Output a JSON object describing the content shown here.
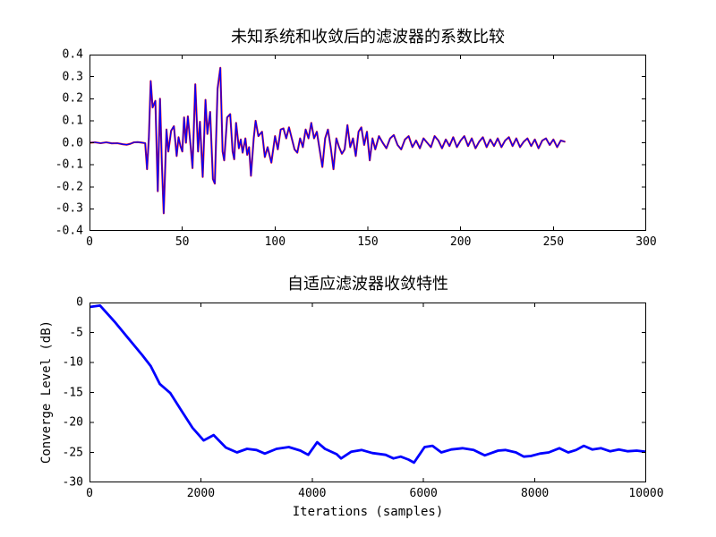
{
  "figure": {
    "background": "#ffffff",
    "frame_color": "#000000"
  },
  "chart_data": [
    {
      "id": "coefficient-comparison",
      "type": "line",
      "title": "未知系统和收敛后的滤波器的系数比较",
      "xlabel": "",
      "ylabel": "",
      "xlim": [
        0,
        300
      ],
      "ylim": [
        -0.4,
        0.4
      ],
      "grid": false,
      "legend": null,
      "xticks": {
        "values": [
          0,
          50,
          100,
          150,
          200,
          250,
          300
        ],
        "labels": [
          "0",
          "50",
          "100",
          "150",
          "200",
          "250",
          "300"
        ]
      },
      "yticks": {
        "values": [
          0.4,
          0.3,
          0.2,
          0.1,
          0.0,
          -0.1,
          -0.2,
          -0.3,
          -0.4
        ],
        "labels": [
          "0.4",
          "0.3",
          "0.2",
          "0.1",
          "0.0",
          "-0.1",
          "-0.2",
          "-0.3",
          "-0.4"
        ]
      },
      "series": [
        {
          "name": "unknown-system-coefficients",
          "color": "#ff0000",
          "width": 2.1,
          "points": "shared"
        },
        {
          "name": "converged-filter-coefficients",
          "color": "#0000ff",
          "width": 1.3,
          "points": "shared"
        }
      ],
      "shared_points": [
        [
          0,
          0
        ],
        [
          3,
          0.002
        ],
        [
          6,
          -0.002
        ],
        [
          9,
          0.002
        ],
        [
          12,
          -0.003
        ],
        [
          15,
          -0.002
        ],
        [
          18,
          -0.007
        ],
        [
          20,
          -0.009
        ],
        [
          22,
          -0.005
        ],
        [
          24,
          0.002
        ],
        [
          26,
          0.003
        ],
        [
          28,
          0.001
        ],
        [
          30,
          -0.002
        ],
        [
          31,
          -0.12
        ],
        [
          32,
          0.02
        ],
        [
          33,
          0.28
        ],
        [
          34,
          0.16
        ],
        [
          35.5,
          0.19
        ],
        [
          36.8,
          -0.22
        ],
        [
          38,
          0.2
        ],
        [
          39,
          -0.1
        ],
        [
          40,
          -0.32
        ],
        [
          41.5,
          0.06
        ],
        [
          42.5,
          -0.04
        ],
        [
          44,
          0.055
        ],
        [
          45.5,
          0.075
        ],
        [
          47,
          -0.06
        ],
        [
          48,
          0.025
        ],
        [
          49,
          -0.015
        ],
        [
          50,
          -0.04
        ],
        [
          51,
          0.115
        ],
        [
          52,
          0
        ],
        [
          53,
          0.12
        ],
        [
          54.5,
          -0.015
        ],
        [
          55.5,
          -0.115
        ],
        [
          57,
          0.265
        ],
        [
          58.5,
          -0.04
        ],
        [
          59.5,
          0.095
        ],
        [
          61,
          -0.155
        ],
        [
          62.5,
          0.195
        ],
        [
          63.5,
          0.04
        ],
        [
          65,
          0.14
        ],
        [
          66.5,
          -0.165
        ],
        [
          67.5,
          -0.185
        ],
        [
          69,
          0.245
        ],
        [
          70.5,
          0.34
        ],
        [
          71.7,
          -0.04
        ],
        [
          72.6,
          -0.08
        ],
        [
          74.2,
          0.115
        ],
        [
          75.8,
          0.13
        ],
        [
          77.1,
          -0.04
        ],
        [
          78,
          -0.075
        ],
        [
          79,
          0.09
        ],
        [
          80.5,
          -0.025
        ],
        [
          81.5,
          0.015
        ],
        [
          82.5,
          -0.045
        ],
        [
          84,
          0.02
        ],
        [
          85,
          -0.055
        ],
        [
          86,
          -0.02
        ],
        [
          87,
          -0.15
        ],
        [
          88.5,
          0.02
        ],
        [
          89.5,
          0.1
        ],
        [
          91,
          0.03
        ],
        [
          93,
          0.05
        ],
        [
          94.5,
          -0.065
        ],
        [
          96,
          -0.02
        ],
        [
          98,
          -0.09
        ],
        [
          100,
          0.03
        ],
        [
          101.5,
          -0.03
        ],
        [
          103,
          0.06
        ],
        [
          104.5,
          0.065
        ],
        [
          106,
          0.02
        ],
        [
          107.5,
          0.07
        ],
        [
          109,
          0.02
        ],
        [
          110.5,
          -0.03
        ],
        [
          112,
          -0.045
        ],
        [
          113.5,
          0.02
        ],
        [
          115,
          -0.02
        ],
        [
          116.5,
          0.06
        ],
        [
          118,
          0.02
        ],
        [
          119.5,
          0.09
        ],
        [
          121,
          0.02
        ],
        [
          122.5,
          0.05
        ],
        [
          124,
          -0.03
        ],
        [
          125.5,
          -0.11
        ],
        [
          127,
          0.02
        ],
        [
          128.5,
          0.06
        ],
        [
          130,
          -0.02
        ],
        [
          131.5,
          -0.12
        ],
        [
          133,
          0.02
        ],
        [
          134.5,
          -0.02
        ],
        [
          136,
          -0.05
        ],
        [
          137.5,
          -0.03
        ],
        [
          139,
          0.08
        ],
        [
          140.5,
          -0.02
        ],
        [
          142,
          0.02
        ],
        [
          143.5,
          -0.06
        ],
        [
          145,
          0.05
        ],
        [
          146.5,
          0.07
        ],
        [
          148,
          -0.01
        ],
        [
          149.5,
          0.05
        ],
        [
          151,
          -0.08
        ],
        [
          152.5,
          0.02
        ],
        [
          154,
          -0.03
        ],
        [
          156,
          0.03
        ],
        [
          158,
          0
        ],
        [
          160,
          -0.025
        ],
        [
          162,
          0.02
        ],
        [
          164,
          0.035
        ],
        [
          166,
          -0.01
        ],
        [
          168,
          -0.03
        ],
        [
          170,
          0.015
        ],
        [
          172,
          0.03
        ],
        [
          174,
          -0.02
        ],
        [
          176,
          0.01
        ],
        [
          178,
          -0.025
        ],
        [
          180,
          0.02
        ],
        [
          182,
          0
        ],
        [
          184,
          -0.02
        ],
        [
          186,
          0.03
        ],
        [
          188,
          0.01
        ],
        [
          190,
          -0.025
        ],
        [
          192,
          0.015
        ],
        [
          194,
          -0.015
        ],
        [
          196,
          0.025
        ],
        [
          198,
          -0.02
        ],
        [
          200,
          0.01
        ],
        [
          202,
          0.03
        ],
        [
          204,
          -0.015
        ],
        [
          206,
          0.02
        ],
        [
          208,
          -0.025
        ],
        [
          210,
          0.005
        ],
        [
          212,
          0.025
        ],
        [
          214,
          -0.02
        ],
        [
          216,
          0.015
        ],
        [
          218,
          -0.015
        ],
        [
          220,
          0.02
        ],
        [
          222,
          -0.02
        ],
        [
          224,
          0.01
        ],
        [
          226,
          0.025
        ],
        [
          228,
          -0.015
        ],
        [
          230,
          0.02
        ],
        [
          232,
          -0.02
        ],
        [
          234,
          0.005
        ],
        [
          236,
          0.02
        ],
        [
          238,
          -0.015
        ],
        [
          240,
          0.015
        ],
        [
          242,
          -0.025
        ],
        [
          244,
          0.01
        ],
        [
          246,
          0.02
        ],
        [
          248,
          -0.01
        ],
        [
          250,
          0.015
        ],
        [
          252,
          -0.02
        ],
        [
          254,
          0.01
        ],
        [
          256,
          0.005
        ]
      ]
    },
    {
      "id": "convergence-characteristic",
      "type": "line",
      "title": "自适应滤波器收敛特性",
      "xlabel": "Iterations (samples)",
      "ylabel": "Converge Level (dB)",
      "xlim": [
        0,
        10000
      ],
      "ylim": [
        -30,
        0
      ],
      "grid": false,
      "legend": null,
      "xticks": {
        "values": [
          0,
          2000,
          4000,
          6000,
          8000,
          10000
        ],
        "labels": [
          "0",
          "2000",
          "4000",
          "6000",
          "8000",
          "10000"
        ]
      },
      "yticks": {
        "values": [
          0,
          -5,
          -10,
          -15,
          -20,
          -25,
          -30
        ],
        "labels": [
          "0",
          "-5",
          "-10",
          "-15",
          "-20",
          "-25",
          "-30"
        ]
      },
      "series": [
        {
          "name": "convergence-level",
          "color": "#0000ff",
          "width": 2.8,
          "points": [
            [
              0,
              -0.75
            ],
            [
              190,
              -0.5
            ],
            [
              450,
              -3.2
            ],
            [
              700,
              -6.0
            ],
            [
              950,
              -8.8
            ],
            [
              1100,
              -10.6
            ],
            [
              1263,
              -13.6
            ],
            [
              1452,
              -15.1
            ],
            [
              1650,
              -18.0
            ],
            [
              1850,
              -20.9
            ],
            [
              2050,
              -23.0
            ],
            [
              2230,
              -22.1
            ],
            [
              2450,
              -24.2
            ],
            [
              2650,
              -25.0
            ],
            [
              2830,
              -24.4
            ],
            [
              3000,
              -24.6
            ],
            [
              3150,
              -25.2
            ],
            [
              3360,
              -24.4
            ],
            [
              3580,
              -24.1
            ],
            [
              3790,
              -24.7
            ],
            [
              3930,
              -25.4
            ],
            [
              4090,
              -23.3
            ],
            [
              4230,
              -24.4
            ],
            [
              4440,
              -25.3
            ],
            [
              4520,
              -26.0
            ],
            [
              4700,
              -24.9
            ],
            [
              4890,
              -24.6
            ],
            [
              5080,
              -25.1
            ],
            [
              5320,
              -25.4
            ],
            [
              5460,
              -26.0
            ],
            [
              5590,
              -25.7
            ],
            [
              5730,
              -26.2
            ],
            [
              5830,
              -26.7
            ],
            [
              6020,
              -24.1
            ],
            [
              6160,
              -23.9
            ],
            [
              6320,
              -25.0
            ],
            [
              6500,
              -24.5
            ],
            [
              6700,
              -24.3
            ],
            [
              6900,
              -24.6
            ],
            [
              7100,
              -25.5
            ],
            [
              7340,
              -24.7
            ],
            [
              7470,
              -24.6
            ],
            [
              7660,
              -25.0
            ],
            [
              7800,
              -25.7
            ],
            [
              7930,
              -25.6
            ],
            [
              8090,
              -25.2
            ],
            [
              8250,
              -25.0
            ],
            [
              8440,
              -24.3
            ],
            [
              8600,
              -25.0
            ],
            [
              8740,
              -24.6
            ],
            [
              8880,
              -23.9
            ],
            [
              9030,
              -24.5
            ],
            [
              9190,
              -24.3
            ],
            [
              9350,
              -24.8
            ],
            [
              9510,
              -24.5
            ],
            [
              9670,
              -24.8
            ],
            [
              9830,
              -24.7
            ],
            [
              10000,
              -24.9
            ]
          ]
        }
      ]
    }
  ]
}
